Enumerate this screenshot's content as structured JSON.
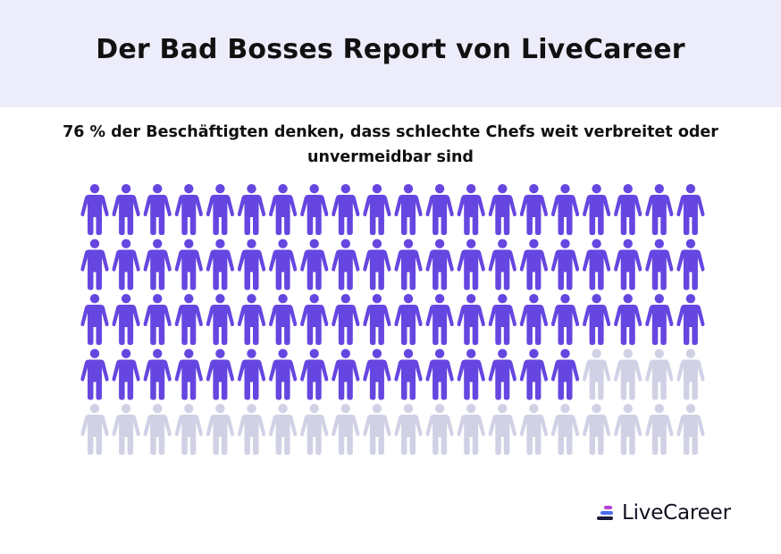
{
  "header": {
    "title": "Der Bad Bosses Report von LiveCareer"
  },
  "subtitle": "76 % der Beschäftigten denken, dass schlechte Chefs weit verbreitet oder unvermeidbar sind",
  "chart_data": {
    "type": "pictogram",
    "total_icons": 100,
    "highlighted": 76,
    "percent": 76,
    "rows": 5,
    "columns": 20,
    "highlight_color": "#6646e0",
    "base_color": "#d1d1e6"
  },
  "logo": {
    "text": "LiveCareer",
    "colors": [
      "#1a1a3a",
      "#4a6cf0",
      "#b63fd6"
    ]
  }
}
